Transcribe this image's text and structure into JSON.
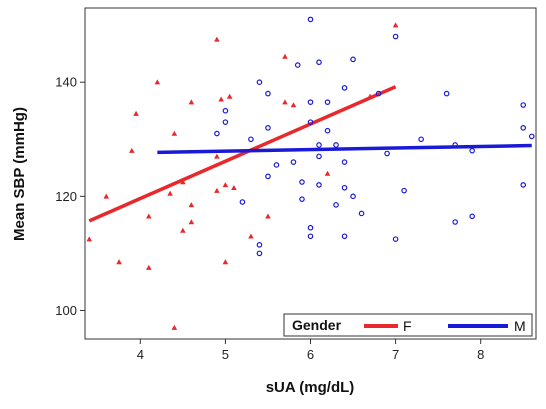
{
  "chart_data": {
    "type": "scatter",
    "xlabel": "sUA (mg/dL)",
    "ylabel": "Mean SBP (mmHg)",
    "xlim": [
      3.35,
      8.65
    ],
    "ylim": [
      95,
      153
    ],
    "x_ticks": [
      4,
      5,
      6,
      7,
      8
    ],
    "y_ticks": [
      100,
      120,
      140
    ],
    "grid": false,
    "legend": {
      "title": "Gender",
      "placement": "bottom-right",
      "entries": [
        {
          "label": "F",
          "color": "#e8282b"
        },
        {
          "label": "M",
          "color": "#1a1ad6"
        }
      ]
    },
    "series": [
      {
        "name": "F",
        "marker": "triangle",
        "color": "#e8282b",
        "points": [
          {
            "x": 3.4,
            "y": 112.5
          },
          {
            "x": 3.6,
            "y": 120
          },
          {
            "x": 3.75,
            "y": 108.5
          },
          {
            "x": 3.9,
            "y": 128
          },
          {
            "x": 3.95,
            "y": 134.5
          },
          {
            "x": 4.1,
            "y": 116.5
          },
          {
            "x": 4.1,
            "y": 107.5
          },
          {
            "x": 4.2,
            "y": 140
          },
          {
            "x": 4.35,
            "y": 120.5
          },
          {
            "x": 4.4,
            "y": 131
          },
          {
            "x": 4.4,
            "y": 97
          },
          {
            "x": 4.5,
            "y": 114
          },
          {
            "x": 4.5,
            "y": 122.5
          },
          {
            "x": 4.6,
            "y": 115.5
          },
          {
            "x": 4.6,
            "y": 118.5
          },
          {
            "x": 4.6,
            "y": 136.5
          },
          {
            "x": 4.9,
            "y": 121
          },
          {
            "x": 4.9,
            "y": 127
          },
          {
            "x": 4.9,
            "y": 147.5
          },
          {
            "x": 4.95,
            "y": 137
          },
          {
            "x": 5.0,
            "y": 108.5
          },
          {
            "x": 5.0,
            "y": 122
          },
          {
            "x": 5.05,
            "y": 137.5
          },
          {
            "x": 5.1,
            "y": 121.5
          },
          {
            "x": 5.3,
            "y": 113
          },
          {
            "x": 5.5,
            "y": 116.5
          },
          {
            "x": 5.7,
            "y": 144.5
          },
          {
            "x": 5.7,
            "y": 136.5
          },
          {
            "x": 5.8,
            "y": 136
          },
          {
            "x": 6.2,
            "y": 124
          },
          {
            "x": 6.7,
            "y": 137.5
          },
          {
            "x": 7.0,
            "y": 150
          }
        ],
        "fit": {
          "x": [
            3.4,
            7.0
          ],
          "y": [
            115.7,
            139.2
          ]
        }
      },
      {
        "name": "M",
        "marker": "circle",
        "color": "#1a1ad6",
        "points": [
          {
            "x": 4.9,
            "y": 131
          },
          {
            "x": 5.0,
            "y": 133
          },
          {
            "x": 5.0,
            "y": 135
          },
          {
            "x": 5.2,
            "y": 119
          },
          {
            "x": 5.3,
            "y": 130
          },
          {
            "x": 5.4,
            "y": 140
          },
          {
            "x": 5.4,
            "y": 111.5
          },
          {
            "x": 5.4,
            "y": 110
          },
          {
            "x": 5.5,
            "y": 138
          },
          {
            "x": 5.5,
            "y": 132
          },
          {
            "x": 5.5,
            "y": 123.5
          },
          {
            "x": 5.6,
            "y": 125.5
          },
          {
            "x": 5.8,
            "y": 126
          },
          {
            "x": 5.85,
            "y": 143
          },
          {
            "x": 5.9,
            "y": 122.5
          },
          {
            "x": 5.9,
            "y": 119.5
          },
          {
            "x": 6.0,
            "y": 151
          },
          {
            "x": 6.0,
            "y": 136.5
          },
          {
            "x": 6.0,
            "y": 114.5
          },
          {
            "x": 6.0,
            "y": 113
          },
          {
            "x": 6.0,
            "y": 133
          },
          {
            "x": 6.1,
            "y": 143.5
          },
          {
            "x": 6.1,
            "y": 129
          },
          {
            "x": 6.1,
            "y": 127
          },
          {
            "x": 6.1,
            "y": 122
          },
          {
            "x": 6.2,
            "y": 136.5
          },
          {
            "x": 6.2,
            "y": 131.5
          },
          {
            "x": 6.3,
            "y": 129
          },
          {
            "x": 6.3,
            "y": 118.5
          },
          {
            "x": 6.4,
            "y": 139
          },
          {
            "x": 6.4,
            "y": 126
          },
          {
            "x": 6.4,
            "y": 121.5
          },
          {
            "x": 6.4,
            "y": 113
          },
          {
            "x": 6.5,
            "y": 144
          },
          {
            "x": 6.5,
            "y": 120
          },
          {
            "x": 6.6,
            "y": 117
          },
          {
            "x": 6.8,
            "y": 138
          },
          {
            "x": 6.9,
            "y": 127.5
          },
          {
            "x": 7.0,
            "y": 148
          },
          {
            "x": 7.0,
            "y": 112.5
          },
          {
            "x": 7.1,
            "y": 121
          },
          {
            "x": 7.3,
            "y": 130
          },
          {
            "x": 7.6,
            "y": 138
          },
          {
            "x": 7.7,
            "y": 129
          },
          {
            "x": 7.7,
            "y": 115.5
          },
          {
            "x": 7.9,
            "y": 116.5
          },
          {
            "x": 7.9,
            "y": 128
          },
          {
            "x": 8.5,
            "y": 136
          },
          {
            "x": 8.5,
            "y": 132
          },
          {
            "x": 8.5,
            "y": 122
          },
          {
            "x": 8.6,
            "y": 130.5
          }
        ],
        "fit": {
          "x": [
            4.2,
            8.6
          ],
          "y": [
            127.7,
            128.9
          ]
        }
      }
    ]
  }
}
